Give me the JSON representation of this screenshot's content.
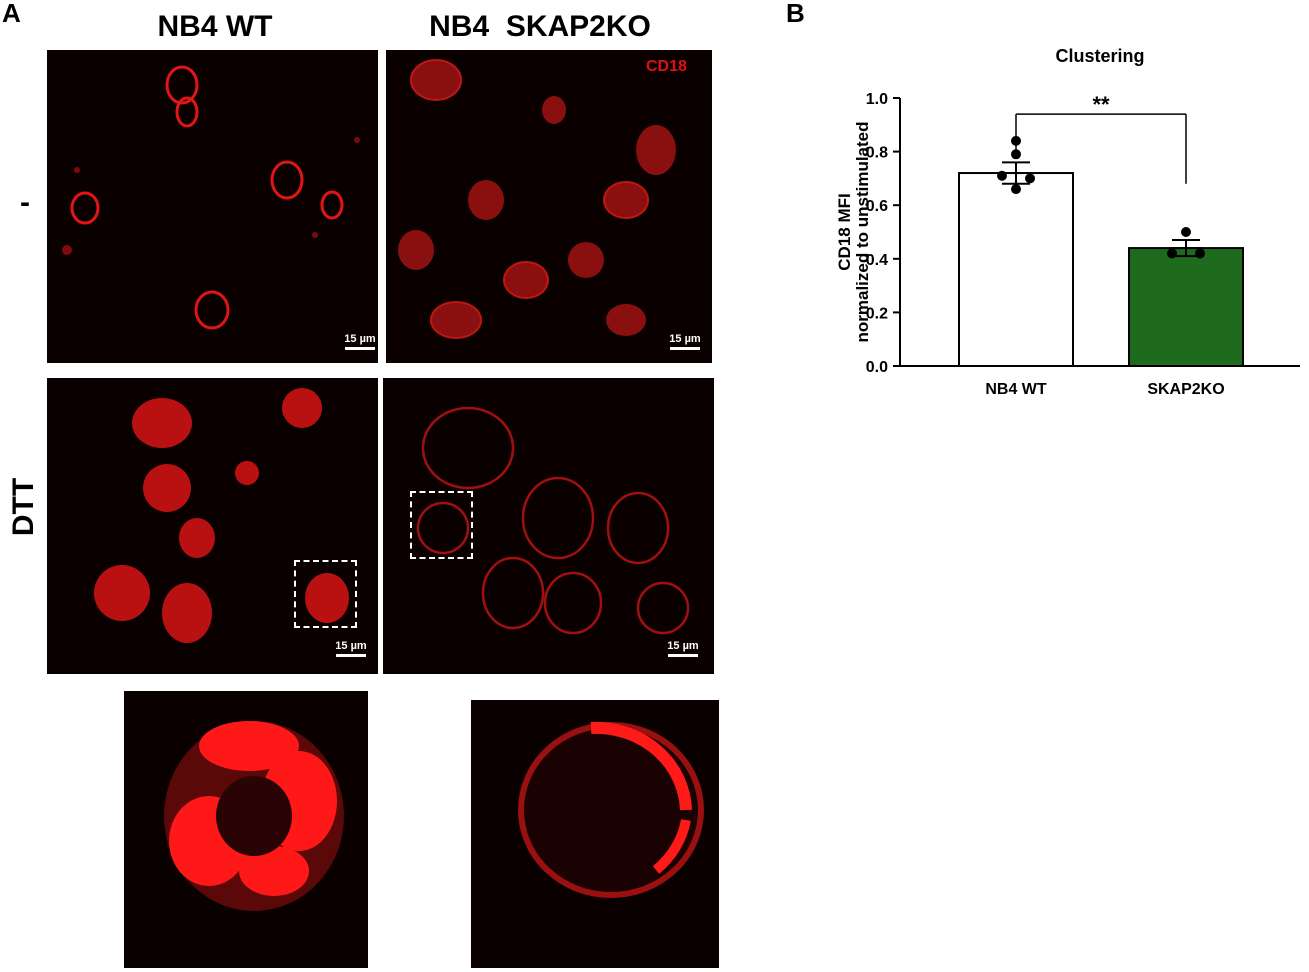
{
  "panel_labels": {
    "a": "A",
    "b": "B"
  },
  "columns": {
    "wt": "NB4 WT",
    "ko": "NB4  SKAP2KO"
  },
  "rows": {
    "untreated": "-",
    "treated": "DTT"
  },
  "stain_label": "CD18",
  "scale_label": "15 µm",
  "colors": {
    "stain": "#ff1a1a",
    "ko_bar": "#1e6b1e",
    "wt_bar": "#ffffff"
  },
  "chart_data": {
    "type": "bar",
    "title": "Clustering",
    "ylabel_line1": "CD18 MFI",
    "ylabel_line2": "normalized to unstimulated",
    "xlabel": "",
    "categories": [
      "NB4 WT",
      "SKAP2KO"
    ],
    "values": [
      0.72,
      0.44
    ],
    "sem": [
      0.04,
      0.03
    ],
    "points": [
      [
        0.84,
        0.79,
        0.71,
        0.7,
        0.66
      ],
      [
        0.5,
        0.42,
        0.42
      ]
    ],
    "ylim": [
      0,
      1.0
    ],
    "yticks": [
      "0.0",
      "0.2",
      "0.4",
      "0.6",
      "0.8",
      "1.0"
    ],
    "significance": "**"
  }
}
